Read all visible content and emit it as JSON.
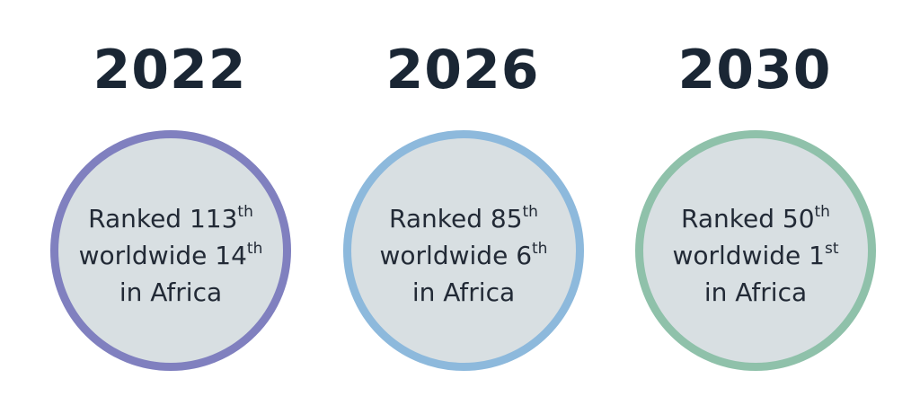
{
  "milestones": [
    {
      "year": "2022",
      "color": "#8080bf",
      "ranked_prefix": "Ranked 113",
      "ranked_suffix": "th",
      "worldwide_prefix": "worldwide 14",
      "worldwide_suffix": "th",
      "region": "in Africa"
    },
    {
      "year": "2026",
      "color": "#8db9dc",
      "ranked_prefix": "Ranked 85",
      "ranked_suffix": "th",
      "worldwide_prefix": "worldwide 6",
      "worldwide_suffix": "th",
      "region": "in Africa"
    },
    {
      "year": "2030",
      "color": "#8fc1aa",
      "ranked_prefix": "Ranked 50",
      "ranked_suffix": "th",
      "worldwide_prefix": "worldwide 1",
      "worldwide_suffix": "st",
      "region": "in Africa"
    }
  ]
}
